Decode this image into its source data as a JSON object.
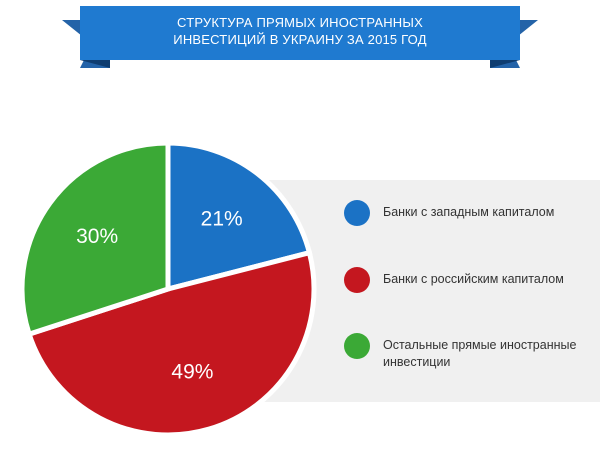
{
  "chart_data": {
    "type": "pie",
    "title": "СТРУКТУРА ПРЯМЫХ ИНОСТРАННЫХ ИНВЕСТИЦИЙ В УКРАИНУ ЗА 2015 ГОД",
    "categories": [
      "Банки с западным капиталом",
      "Банки с российским капиталом",
      "Остальные прямые иностранные инвестиции"
    ],
    "values": [
      21,
      49,
      30
    ],
    "value_labels": [
      "21%",
      "49%",
      "30%"
    ],
    "colors": [
      "#1b72c5",
      "#c4171f",
      "#3ba936"
    ]
  }
}
